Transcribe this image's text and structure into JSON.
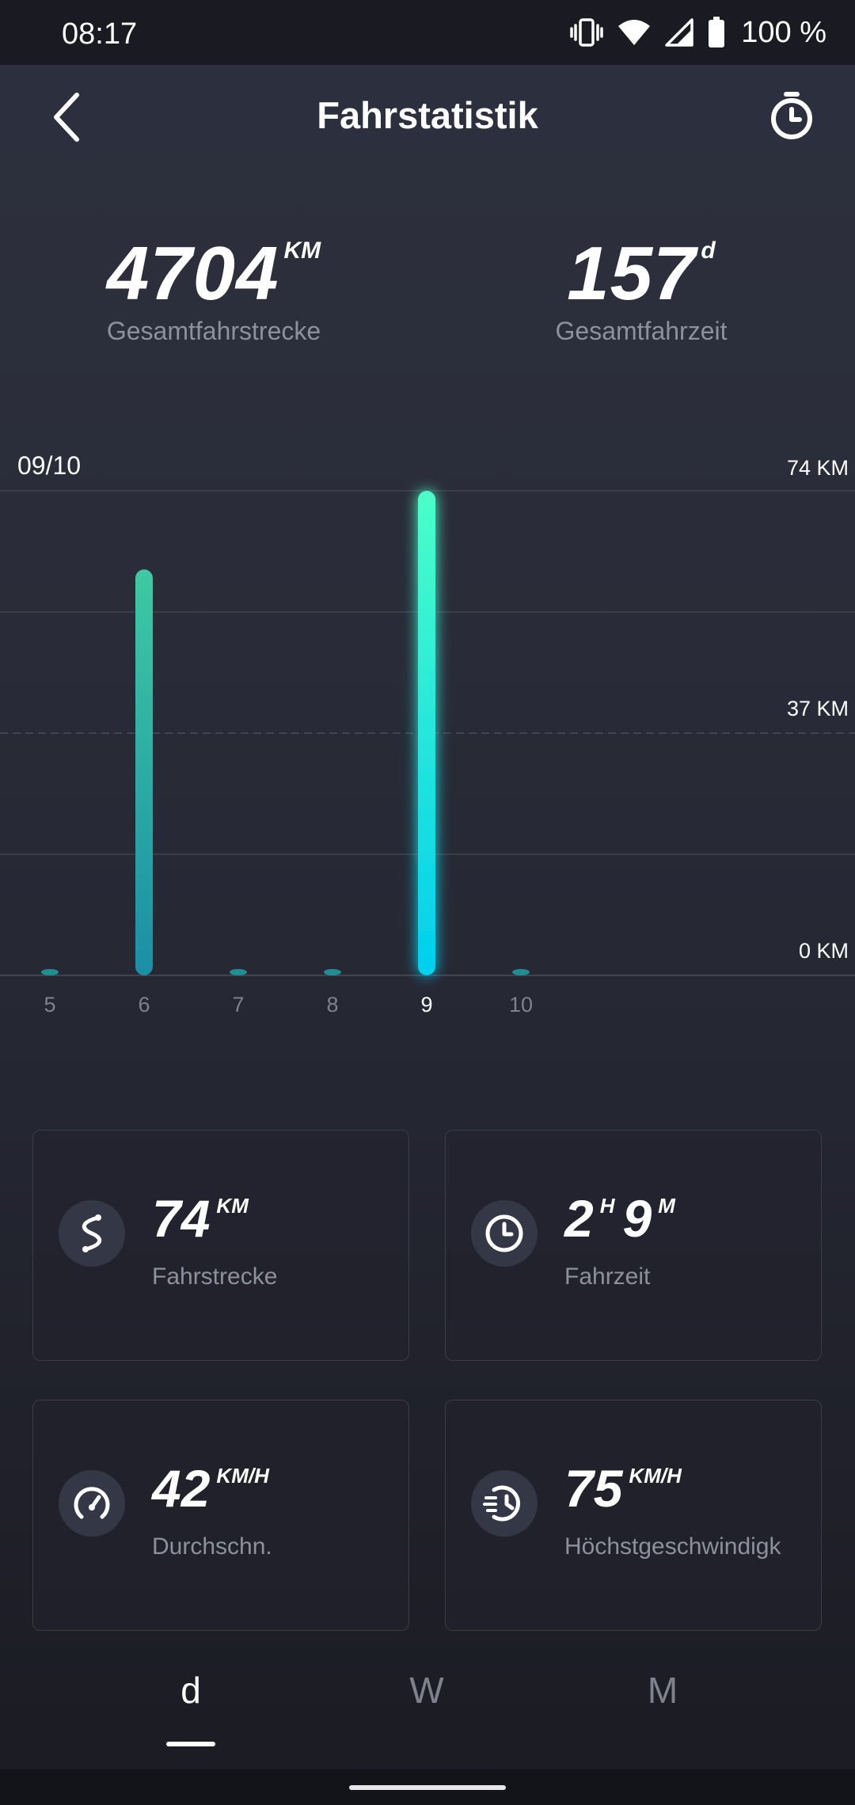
{
  "status_bar": {
    "time": "08:17",
    "battery": "100 %",
    "icons": [
      "vibrate-icon",
      "wifi-icon",
      "signal-icon",
      "battery-icon"
    ]
  },
  "header": {
    "title": "Fahrstatistik",
    "back_icon": "chevron-left-icon",
    "timer_icon": "stopwatch-icon"
  },
  "totals": {
    "distance": {
      "value": "4704",
      "unit": "KM",
      "label": "Gesamtfahrstrecke"
    },
    "time": {
      "value": "157",
      "unit": "d",
      "label": "Gesamtfahrzeit"
    }
  },
  "chart_data": {
    "type": "bar",
    "selected_label": "09/10",
    "categories": [
      "5",
      "6",
      "7",
      "8",
      "9",
      "10"
    ],
    "values": [
      0,
      62,
      0,
      0,
      74,
      0
    ],
    "selected_index": 4,
    "ylim": [
      0,
      74
    ],
    "y_ticks": [
      "74 KM",
      "37 KM",
      "0 KM"
    ],
    "colors": {
      "bar_top": "#3ec9a3",
      "bar_bottom": "#1a8fa6",
      "selected_top": "#4affc8",
      "selected_bottom": "#00cfee"
    }
  },
  "cards": {
    "distance": {
      "icon": "route-icon",
      "value": "74",
      "unit": "KM",
      "label": "Fahrstrecke"
    },
    "time": {
      "icon": "clock-icon",
      "hours": "2",
      "hours_unit": "H",
      "minutes": "9",
      "minutes_unit": "M",
      "label": "Fahrzeit"
    },
    "average_speed": {
      "icon": "speedometer-icon",
      "value": "42",
      "unit": "KM/H",
      "label": "Durchschn."
    },
    "max_speed": {
      "icon": "fast-timer-icon",
      "value": "75",
      "unit": "KM/H",
      "label": "Höchstgeschwindigk"
    }
  },
  "tabs": [
    {
      "label": "d",
      "active": true
    },
    {
      "label": "W",
      "active": false
    },
    {
      "label": "M",
      "active": false
    }
  ]
}
